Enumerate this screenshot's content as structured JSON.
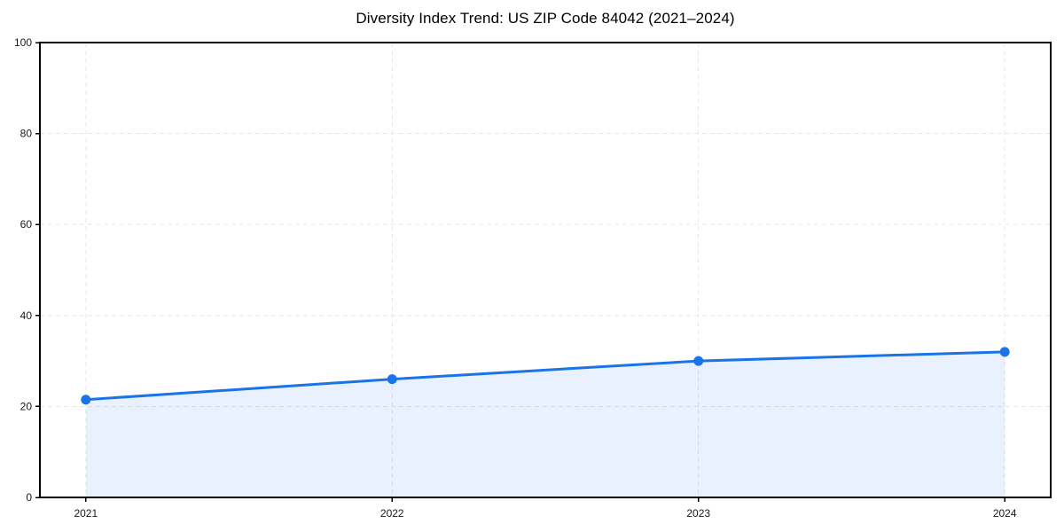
{
  "page": {
    "background": "#ffffff"
  },
  "chart_data": {
    "type": "line",
    "title": "Diversity Index Trend: US ZIP Code 84042 (2021–2024)",
    "x": [
      2021,
      2022,
      2023,
      2024
    ],
    "series": [
      {
        "name": "Diversity Index",
        "values": [
          21.5,
          26,
          30,
          32
        ]
      }
    ],
    "xlabel": "",
    "ylabel": "",
    "ylim": [
      0,
      100
    ],
    "yticks": [
      0,
      20,
      40,
      60,
      80,
      100
    ],
    "xticks": [
      "2021",
      "2022",
      "2023",
      "2024"
    ],
    "grid": "dashed",
    "legend_position": "none",
    "area_fill": true,
    "colors": {
      "line": "#1a73e8",
      "marker": "#1a73e8",
      "area": "rgba(26,115,232,0.10)",
      "grid": "#e7e7e7",
      "spine": "#000000",
      "tick": "#000000",
      "tick_label": "#1a1a1a",
      "title": "#000000",
      "background": "#ffffff"
    }
  }
}
